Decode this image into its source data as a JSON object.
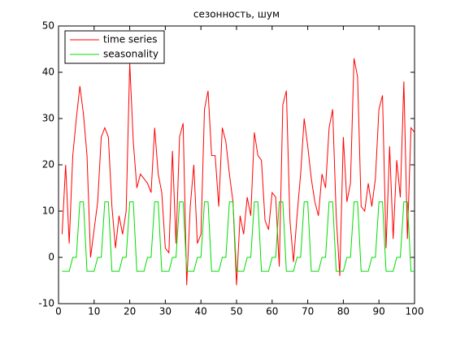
{
  "chart_data": {
    "type": "line",
    "title": "сезонность, шум",
    "x": [
      1,
      2,
      3,
      4,
      5,
      6,
      7,
      8,
      9,
      10,
      11,
      12,
      13,
      14,
      15,
      16,
      17,
      18,
      19,
      20,
      21,
      22,
      23,
      24,
      25,
      26,
      27,
      28,
      29,
      30,
      31,
      32,
      33,
      34,
      35,
      36,
      37,
      38,
      39,
      40,
      41,
      42,
      43,
      44,
      45,
      46,
      47,
      48,
      49,
      50,
      51,
      52,
      53,
      54,
      55,
      56,
      57,
      58,
      59,
      60,
      61,
      62,
      63,
      64,
      65,
      66,
      67,
      68,
      69,
      70,
      71,
      72,
      73,
      74,
      75,
      76,
      77,
      78,
      79,
      80,
      81,
      82,
      83,
      84,
      85,
      86,
      87,
      88,
      89,
      90,
      91,
      92,
      93,
      94,
      95,
      96,
      97,
      98,
      99,
      100
    ],
    "series": [
      {
        "name": "time series",
        "color": "#ff0000",
        "values": [
          5,
          20,
          3,
          22,
          30,
          37,
          31,
          22,
          0,
          6,
          12,
          26,
          28,
          26,
          11,
          2,
          9,
          5,
          10,
          42,
          25,
          15,
          18,
          17,
          16,
          14,
          28,
          18,
          14,
          2,
          1,
          23,
          3,
          26,
          29,
          -6,
          11,
          20,
          3,
          5,
          32,
          36,
          22,
          22,
          11,
          28,
          25,
          18,
          12,
          -6,
          9,
          5,
          13,
          9,
          27,
          22,
          21,
          8,
          6,
          14,
          13,
          -2,
          33,
          36,
          8,
          -1,
          9,
          18,
          30,
          24,
          17,
          12,
          9,
          18,
          15,
          28,
          32,
          9,
          -4,
          26,
          12,
          16,
          43,
          39,
          11,
          10,
          16,
          11,
          17,
          32,
          35,
          2,
          24,
          4,
          21,
          13,
          38,
          4,
          28,
          27
        ]
      },
      {
        "name": "seasonality",
        "color": "#00dd00",
        "values": [
          -3,
          -3,
          -3,
          0,
          0,
          12,
          12,
          -3,
          -3,
          -3,
          0,
          0,
          12,
          12,
          -3,
          -3,
          -3,
          0,
          0,
          12,
          12,
          -3,
          -3,
          -3,
          0,
          0,
          12,
          12,
          -3,
          -3,
          -3,
          0,
          0,
          12,
          12,
          -3,
          -3,
          -3,
          0,
          0,
          12,
          12,
          -3,
          -3,
          -3,
          0,
          0,
          12,
          12,
          -3,
          -3,
          -3,
          0,
          0,
          12,
          12,
          -3,
          -3,
          -3,
          0,
          0,
          12,
          12,
          -3,
          -3,
          -3,
          0,
          0,
          12,
          12,
          -3,
          -3,
          -3,
          0,
          0,
          12,
          12,
          -3,
          -3,
          -3,
          0,
          0,
          12,
          12,
          -3,
          -3,
          -3,
          0,
          0,
          12,
          12,
          -3,
          -3,
          -3,
          0,
          0,
          12,
          12,
          -3,
          -3
        ]
      }
    ],
    "xlim": [
      0,
      100
    ],
    "xticks": [
      0,
      10,
      20,
      30,
      40,
      50,
      60,
      70,
      80,
      90,
      100
    ],
    "ylim": [
      -10,
      50
    ],
    "yticks": [
      -10,
      0,
      10,
      20,
      30,
      40,
      50
    ],
    "legend": "upper left"
  }
}
